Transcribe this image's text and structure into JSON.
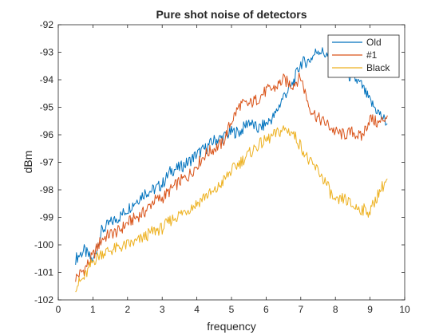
{
  "chart_data": {
    "type": "line",
    "title": "Pure shot noise of detectors",
    "xlabel": "frequency",
    "ylabel": "dBm",
    "xlim": [
      0,
      10
    ],
    "ylim": [
      -102,
      -92
    ],
    "xticks": [
      "0",
      "1",
      "2",
      "3",
      "4",
      "5",
      "6",
      "7",
      "8",
      "9",
      "10"
    ],
    "yticks": [
      "-92",
      "-93",
      "-94",
      "-95",
      "-96",
      "-97",
      "-98",
      "-99",
      "-100",
      "-101",
      "-102"
    ],
    "grid": false,
    "legend_position": "top-right",
    "x": [
      0.5,
      0.75,
      1.0,
      1.25,
      1.5,
      1.75,
      2.0,
      2.25,
      2.5,
      2.75,
      3.0,
      3.25,
      3.5,
      3.75,
      4.0,
      4.25,
      4.5,
      4.75,
      5.0,
      5.25,
      5.5,
      5.75,
      6.0,
      6.25,
      6.5,
      6.75,
      7.0,
      7.25,
      7.5,
      7.75,
      8.0,
      8.25,
      8.5,
      8.75,
      9.0,
      9.25,
      9.5
    ],
    "series": [
      {
        "name": "Old",
        "color": "#0072BD",
        "values": [
          -100.5,
          -100.2,
          -100.6,
          -99.5,
          -99.2,
          -99.0,
          -98.7,
          -98.4,
          -98.1,
          -98.0,
          -97.8,
          -97.3,
          -97.2,
          -97.0,
          -96.7,
          -96.5,
          -96.2,
          -96.1,
          -95.9,
          -95.9,
          -95.5,
          -95.8,
          -95.6,
          -95.3,
          -94.6,
          -94.2,
          -93.4,
          -93.3,
          -92.9,
          -93.1,
          -93.6,
          -93.8,
          -93.9,
          -94.2,
          -94.8,
          -95.2,
          -95.6
        ]
      },
      {
        "name": "#1",
        "color": "#D95319",
        "values": [
          -101.2,
          -100.9,
          -100.4,
          -99.8,
          -99.6,
          -99.5,
          -99.2,
          -99.0,
          -98.8,
          -98.4,
          -98.3,
          -98.0,
          -97.7,
          -97.5,
          -97.1,
          -96.7,
          -96.5,
          -96.3,
          -95.5,
          -94.9,
          -94.9,
          -94.7,
          -94.4,
          -94.3,
          -94.0,
          -94.2,
          -93.9,
          -95.0,
          -95.4,
          -95.6,
          -95.9,
          -96.0,
          -95.9,
          -96.1,
          -95.4,
          -95.6,
          -95.3
        ]
      },
      {
        "name": "Black",
        "color": "#EDB120",
        "values": [
          -101.5,
          -101.2,
          -100.6,
          -100.3,
          -100.2,
          -100.1,
          -100.0,
          -99.9,
          -99.7,
          -99.5,
          -99.4,
          -99.1,
          -98.9,
          -98.7,
          -98.5,
          -98.2,
          -98.1,
          -97.7,
          -97.3,
          -97.0,
          -96.7,
          -96.4,
          -96.2,
          -96.0,
          -95.8,
          -95.9,
          -96.4,
          -97.0,
          -97.3,
          -97.8,
          -98.5,
          -98.3,
          -98.6,
          -98.7,
          -98.8,
          -98.1,
          -97.6
        ]
      }
    ]
  }
}
